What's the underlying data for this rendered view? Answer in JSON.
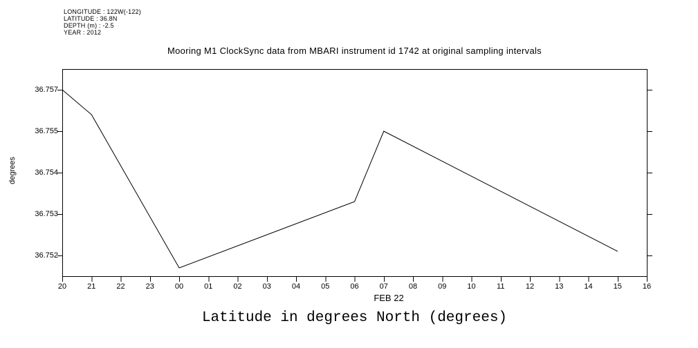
{
  "header": {
    "metadata_lines": [
      "LONGITUDE : 122W(-122)",
      "LATITUDE : 36.8N",
      "DEPTH (m) : -2.5",
      "YEAR : 2012"
    ]
  },
  "footer": {
    "caption": "Latitude in degrees North (degrees)"
  },
  "chart_data": {
    "type": "line",
    "title": "Mooring M1 ClockSync data from MBARI instrument id 1742 at original sampling intervals",
    "xlabel": "FEB 22",
    "ylabel": "degrees",
    "x_tick_labels": [
      "20",
      "21",
      "22",
      "23",
      "00",
      "01",
      "02",
      "03",
      "04",
      "05",
      "06",
      "07",
      "08",
      "09",
      "10",
      "11",
      "12",
      "13",
      "14",
      "15",
      "16"
    ],
    "y_ticks": [
      {
        "label": "36.757",
        "value": 36.757
      },
      {
        "label": "36.755",
        "value": 36.755
      },
      {
        "label": "36.754",
        "value": 36.754
      },
      {
        "label": "36.753",
        "value": 36.753
      },
      {
        "label": "36.752",
        "value": 36.752
      }
    ],
    "series": [
      {
        "name": "latitude_degrees_north",
        "units": "degrees",
        "points": [
          {
            "x": "20",
            "y": 36.757
          },
          {
            "x": "21",
            "y": 36.7558
          },
          {
            "x": "00",
            "y": 36.7517
          },
          {
            "x": "06",
            "y": 36.7533
          },
          {
            "x": "07",
            "y": 36.755
          },
          {
            "x": "15",
            "y": 36.7521
          }
        ]
      }
    ],
    "grid": false,
    "frame": true,
    "legend": "none",
    "line_color": "#000000",
    "axis_color": "#000000",
    "background": "#ffffff"
  }
}
